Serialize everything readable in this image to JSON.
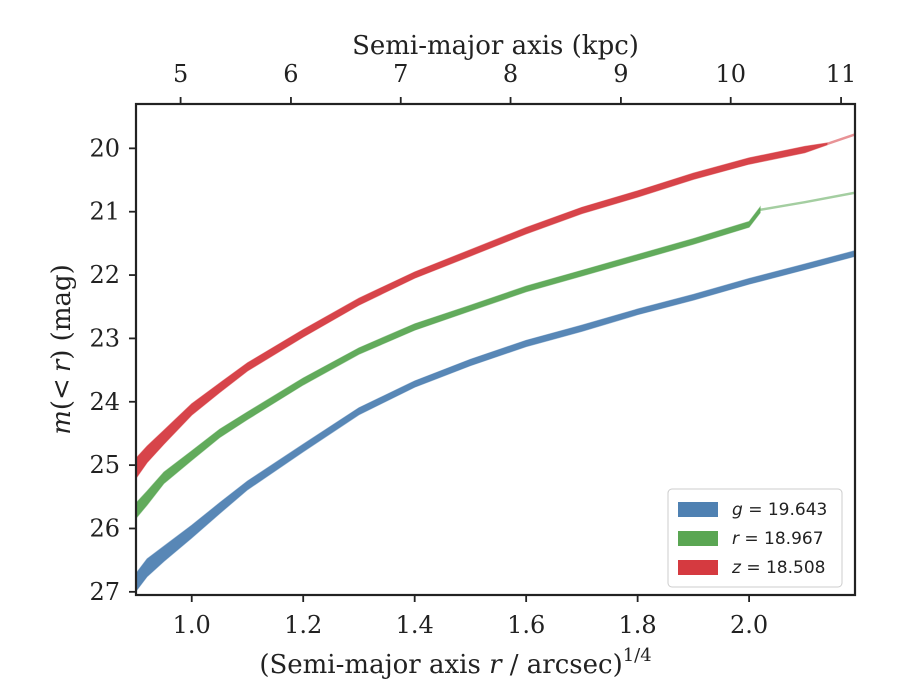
{
  "chart_data": {
    "type": "line",
    "xlabel": "(Semi-major axis r / arcsec)1/4",
    "xlabel_parts": {
      "pre": "(Semi-major axis ",
      "var": "r",
      "post": " / arcsec)",
      "exp": "1/4"
    },
    "ylabel": "m(< r) (mag)",
    "ylabel_parts": {
      "func": "m",
      "open": "(",
      "lt": "<",
      "var": "r",
      "close": ")",
      "unit": " (mag)"
    },
    "top_xlabel": "Semi-major axis (kpc)",
    "xlim": [
      0.9,
      2.19
    ],
    "ylim": [
      27.05,
      19.3
    ],
    "y_inverted": true,
    "x_ticks": [
      1.0,
      1.2,
      1.4,
      1.6,
      1.8,
      2.0
    ],
    "x_tick_labels": [
      "1.0",
      "1.2",
      "1.4",
      "1.6",
      "1.8",
      "2.0"
    ],
    "y_ticks": [
      20,
      21,
      22,
      23,
      24,
      25,
      26,
      27
    ],
    "y_tick_labels": [
      "20",
      "21",
      "22",
      "23",
      "24",
      "25",
      "26",
      "27"
    ],
    "top_ticks_kpc": [
      5,
      6,
      7,
      8,
      9,
      10,
      11
    ],
    "top_tick_labels": [
      "5",
      "6",
      "7",
      "8",
      "9",
      "10",
      "11"
    ],
    "top_tick_x_positions": [
      0.98,
      1.178,
      1.375,
      1.572,
      1.77,
      1.967,
      2.165
    ],
    "grid": false,
    "legend_placement": "lower-right",
    "legend": [
      {
        "var": "g",
        "text": " = 19.643",
        "color": "#4f81b2"
      },
      {
        "var": "r",
        "text": " = 18.967",
        "color": "#5aa653"
      },
      {
        "var": "z",
        "text": " = 18.508",
        "color": "#d53a40"
      }
    ],
    "series": [
      {
        "name": "g = 19.643",
        "color": "#4f81b2",
        "x": [
          0.9,
          0.92,
          0.95,
          1.0,
          1.05,
          1.1,
          1.2,
          1.3,
          1.4,
          1.5,
          1.6,
          1.7,
          1.8,
          1.9,
          2.0,
          2.1,
          2.19
        ],
        "y": [
          26.85,
          26.62,
          26.4,
          26.05,
          25.68,
          25.32,
          24.73,
          24.15,
          23.72,
          23.38,
          23.08,
          22.84,
          22.58,
          22.35,
          22.1,
          21.87,
          21.66
        ],
        "width": [
          0.28,
          0.28,
          0.24,
          0.2,
          0.17,
          0.14,
          0.12,
          0.11,
          0.1,
          0.1,
          0.1,
          0.1,
          0.09,
          0.09,
          0.09,
          0.09,
          0.09
        ],
        "measured_until": 2.19
      },
      {
        "name": "r = 18.967",
        "color": "#5aa653",
        "x": [
          0.9,
          0.92,
          0.95,
          1.0,
          1.05,
          1.1,
          1.2,
          1.3,
          1.4,
          1.5,
          1.6,
          1.7,
          1.8,
          1.9,
          2.0,
          2.02,
          2.1,
          2.19
        ],
        "y": [
          25.72,
          25.52,
          25.2,
          24.85,
          24.5,
          24.22,
          23.68,
          23.2,
          22.82,
          22.52,
          22.22,
          21.97,
          21.72,
          21.47,
          21.2,
          20.97,
          20.85,
          20.7
        ],
        "width": [
          0.24,
          0.22,
          0.18,
          0.15,
          0.13,
          0.12,
          0.11,
          0.1,
          0.1,
          0.09,
          0.09,
          0.09,
          0.09,
          0.09,
          0.09,
          0.09,
          0.03,
          0.03
        ],
        "measured_until": 2.02
      },
      {
        "name": "z = 18.508",
        "color": "#d53a40",
        "x": [
          0.9,
          0.92,
          0.95,
          1.0,
          1.05,
          1.1,
          1.2,
          1.3,
          1.4,
          1.5,
          1.6,
          1.7,
          1.8,
          1.9,
          2.0,
          2.1,
          2.14,
          2.19
        ],
        "y": [
          25.05,
          24.83,
          24.56,
          24.12,
          23.78,
          23.45,
          22.92,
          22.42,
          22.0,
          21.65,
          21.3,
          20.98,
          20.72,
          20.44,
          20.2,
          20.02,
          19.93,
          19.78
        ],
        "width": [
          0.32,
          0.26,
          0.22,
          0.18,
          0.15,
          0.13,
          0.12,
          0.11,
          0.1,
          0.1,
          0.1,
          0.1,
          0.1,
          0.1,
          0.1,
          0.1,
          0.03,
          0.03
        ],
        "measured_until": 2.14
      }
    ]
  }
}
